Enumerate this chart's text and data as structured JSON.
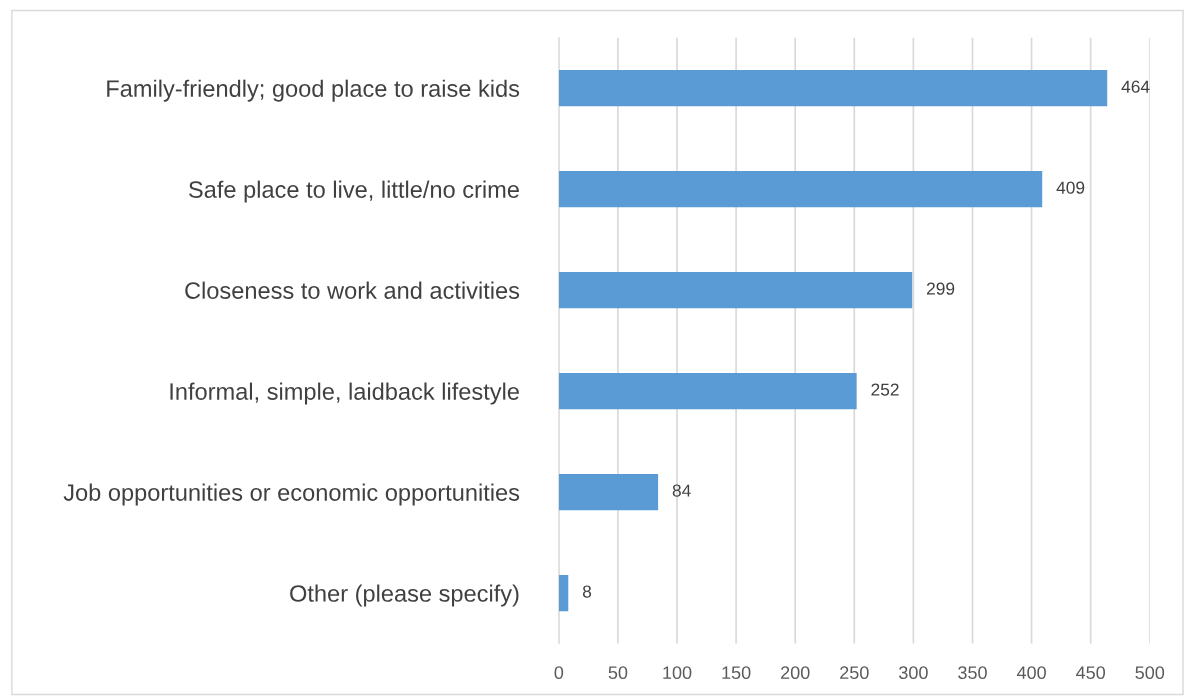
{
  "chart_data": {
    "type": "bar",
    "orientation": "horizontal",
    "categories": [
      "Family-friendly; good place to raise kids",
      "Safe place to live, little/no crime",
      "Closeness to work and activities",
      "Informal, simple, laidback lifestyle",
      "Job opportunities or economic opportunities",
      "Other (please specify)"
    ],
    "values": [
      464,
      409,
      299,
      252,
      84,
      8
    ],
    "color": "#5b9bd5",
    "xlim": [
      0,
      500
    ],
    "xticks": [
      0,
      50,
      100,
      150,
      200,
      250,
      300,
      350,
      400,
      450,
      500
    ],
    "grid": "x",
    "data_labels": true
  }
}
